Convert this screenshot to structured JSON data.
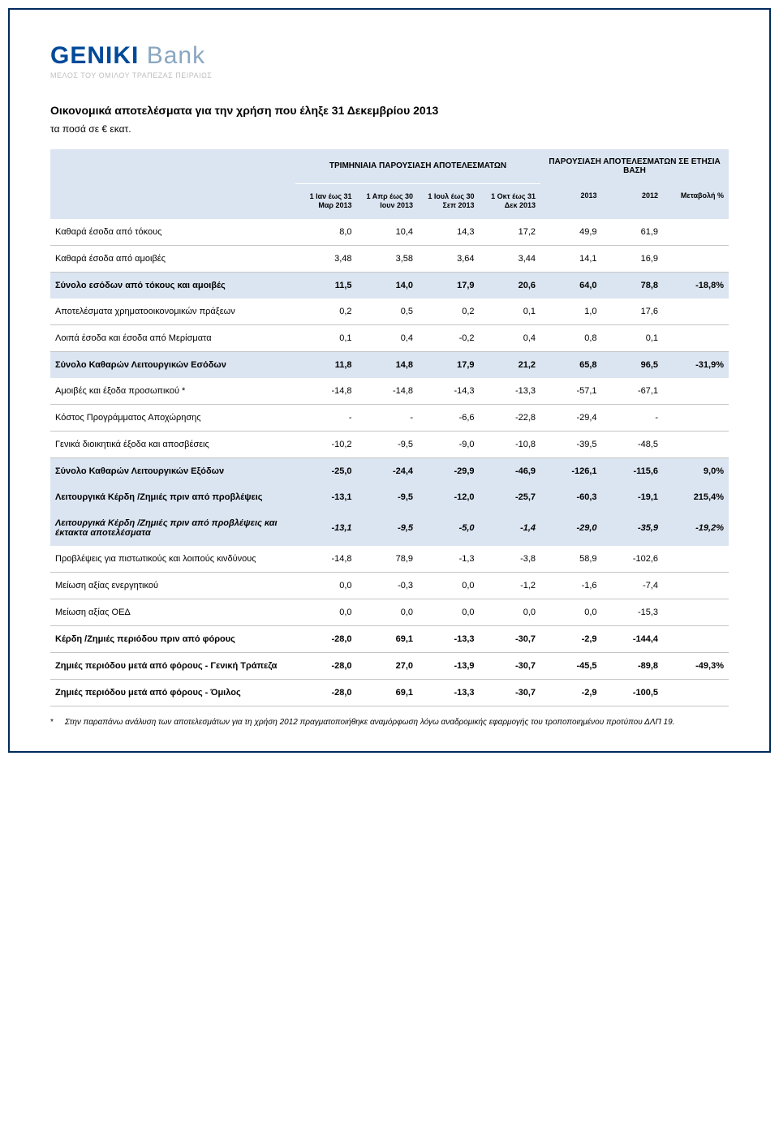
{
  "logo": {
    "brand": "GENIKI",
    "suffix": " Bank",
    "tagline": "ΜΕΛΟΣ ΤΟΥ ΟΜΙΛΟΥ ΤΡΑΠΕΖΑΣ ΠΕΙΡΑΙΩΣ"
  },
  "title": "Οικονομικά αποτελέσματα για την χρήση που έληξε 31 Δεκεμβρίου 2013",
  "subtitle": "τα ποσά σε € εκατ.",
  "header_group1": "ΤΡΙΜΗΝΙΑΙΑ ΠΑΡΟΥΣΙΑΣΗ ΑΠΟΤΕΛΕΣΜΑΤΩΝ",
  "header_group2": "ΠΑΡΟΥΣΙΑΣΗ ΑΠΟΤΕΛΕΣΜΑΤΩΝ ΣΕ ΕΤΗΣΙΑ ΒΑΣΗ",
  "col_q1": "1 Ιαν έως 31 Μαρ 2013",
  "col_q2": "1 Απρ έως 30 Ιουν 2013",
  "col_q3": "1 Ιουλ έως 30 Σεπ 2013",
  "col_q4": "1 Οκτ έως 31 Δεκ 2013",
  "col_y1": "2013",
  "col_y2": "2012",
  "col_chg": "Μεταβολή %",
  "rows": [
    {
      "type": "regular",
      "label": "Καθαρά έσοδα από τόκους",
      "q1": "8,0",
      "q2": "10,4",
      "q3": "14,3",
      "q4": "17,2",
      "y1": "49,9",
      "y2": "61,9",
      "chg": ""
    },
    {
      "type": "regular",
      "label": "Καθαρά έσοδα από αμοιβές",
      "q1": "3,48",
      "q2": "3,58",
      "q3": "3,64",
      "q4": "3,44",
      "y1": "14,1",
      "y2": "16,9",
      "chg": ""
    },
    {
      "type": "bold-row",
      "label": "Σύνολο εσόδων από τόκους και αμοιβές",
      "q1": "11,5",
      "q2": "14,0",
      "q3": "17,9",
      "q4": "20,6",
      "y1": "64,0",
      "y2": "78,8",
      "chg": "-18,8%"
    },
    {
      "type": "regular",
      "label": "Αποτελέσματα χρηματοοικονομικών πράξεων",
      "q1": "0,2",
      "q2": "0,5",
      "q3": "0,2",
      "q4": "0,1",
      "y1": "1,0",
      "y2": "17,6",
      "chg": ""
    },
    {
      "type": "regular",
      "label": "Λοιπά έσοδα και έσοδα από Μερίσματα",
      "q1": "0,1",
      "q2": "0,4",
      "q3": "-0,2",
      "q4": "0,4",
      "y1": "0,8",
      "y2": "0,1",
      "chg": ""
    },
    {
      "type": "bold-row",
      "label": "Σύνολο Καθαρών Λειτουργικών Εσόδων",
      "q1": "11,8",
      "q2": "14,8",
      "q3": "17,9",
      "q4": "21,2",
      "y1": "65,8",
      "y2": "96,5",
      "chg": "-31,9%"
    },
    {
      "type": "regular",
      "label": "Αμοιβές και έξοδα προσωπικού *",
      "q1": "-14,8",
      "q2": "-14,8",
      "q3": "-14,3",
      "q4": "-13,3",
      "y1": "-57,1",
      "y2": "-67,1",
      "chg": ""
    },
    {
      "type": "regular",
      "label": "Κόστος Προγράμματος Αποχώρησης",
      "q1": "-",
      "q2": "-",
      "q3": "-6,6",
      "q4": "-22,8",
      "y1": "-29,4",
      "y2": "-",
      "chg": ""
    },
    {
      "type": "regular",
      "label": "Γενικά διοικητικά έξοδα και αποσβέσεις",
      "q1": "-10,2",
      "q2": "-9,5",
      "q3": "-9,0",
      "q4": "-10,8",
      "y1": "-39,5",
      "y2": "-48,5",
      "chg": ""
    },
    {
      "type": "bold-row",
      "label": "Σύνολο Καθαρών Λειτουργικών Εξόδων",
      "q1": "-25,0",
      "q2": "-24,4",
      "q3": "-29,9",
      "q4": "-46,9",
      "y1": "-126,1",
      "y2": "-115,6",
      "chg": "9,0%"
    },
    {
      "type": "bold-row",
      "label": "Λειτουργικά Κέρδη /Ζημιές  πριν  από προβλέψεις",
      "q1": "-13,1",
      "q2": "-9,5",
      "q3": "-12,0",
      "q4": "-25,7",
      "y1": "-60,3",
      "y2": "-19,1",
      "chg": "215,4%"
    },
    {
      "type": "italic-row",
      "label": "Λειτουργικά Κέρδη /Ζημιές  πριν  από προβλέψεις και έκτακτα αποτελέσματα",
      "q1": "-13,1",
      "q2": "-9,5",
      "q3": "-5,0",
      "q4": "-1,4",
      "y1": "-29,0",
      "y2": "-35,9",
      "chg": "-19,2%"
    },
    {
      "type": "regular",
      "label": "Προβλέψεις για πιστωτικούς και λοιπούς κινδύνους",
      "q1": "-14,8",
      "q2": "78,9",
      "q3": "-1,3",
      "q4": "-3,8",
      "y1": "58,9",
      "y2": "-102,6",
      "chg": ""
    },
    {
      "type": "regular",
      "label": "Μείωση αξίας ενεργητικού",
      "q1": "0,0",
      "q2": "-0,3",
      "q3": "0,0",
      "q4": "-1,2",
      "y1": "-1,6",
      "y2": "-7,4",
      "chg": ""
    },
    {
      "type": "regular",
      "label": "Μείωση αξίας ΟΕΔ",
      "q1": "0,0",
      "q2": "0,0",
      "q3": "0,0",
      "q4": "0,0",
      "y1": "0,0",
      "y2": "-15,3",
      "chg": ""
    },
    {
      "type": "bold-noshade",
      "label": "Κέρδη /Ζημιές  περιόδου πριν από φόρους",
      "q1": "-28,0",
      "q2": "69,1",
      "q3": "-13,3",
      "q4": "-30,7",
      "y1": "-2,9",
      "y2": "-144,4",
      "chg": ""
    },
    {
      "type": "bold-noshade",
      "label": "Ζημιές περιόδου μετά από φόρους - Γενική Τράπεζα",
      "q1": "-28,0",
      "q2": "27,0",
      "q3": "-13,9",
      "q4": "-30,7",
      "y1": "-45,5",
      "y2": "-89,8",
      "chg": "-49,3%"
    },
    {
      "type": "bold-noshade",
      "label": "Ζημιές  περιόδου μετά από φόρους - Όμιλος",
      "q1": "-28,0",
      "q2": "69,1",
      "q3": "-13,3",
      "q4": "-30,7",
      "y1": "-2,9",
      "y2": "-100,5",
      "chg": ""
    }
  ],
  "footnote_marker": "*",
  "footnote_text": "Στην παραπάνω ανάλυση των αποτελεσμάτων για τη χρήση 2012 πραγματοποιήθηκε αναμόρφωση λόγω αναδρομικής εφαρμογής του τροποποιημένου προτύπου ΔΛΠ 19.",
  "colors": {
    "border": "#002b5c",
    "logo_main": "#004a99",
    "logo_suffix": "#8aa7c1",
    "logo_tagline": "#c0c0c0",
    "header_bg": "#dbe5f1",
    "row_border": "#c6c6c6"
  }
}
